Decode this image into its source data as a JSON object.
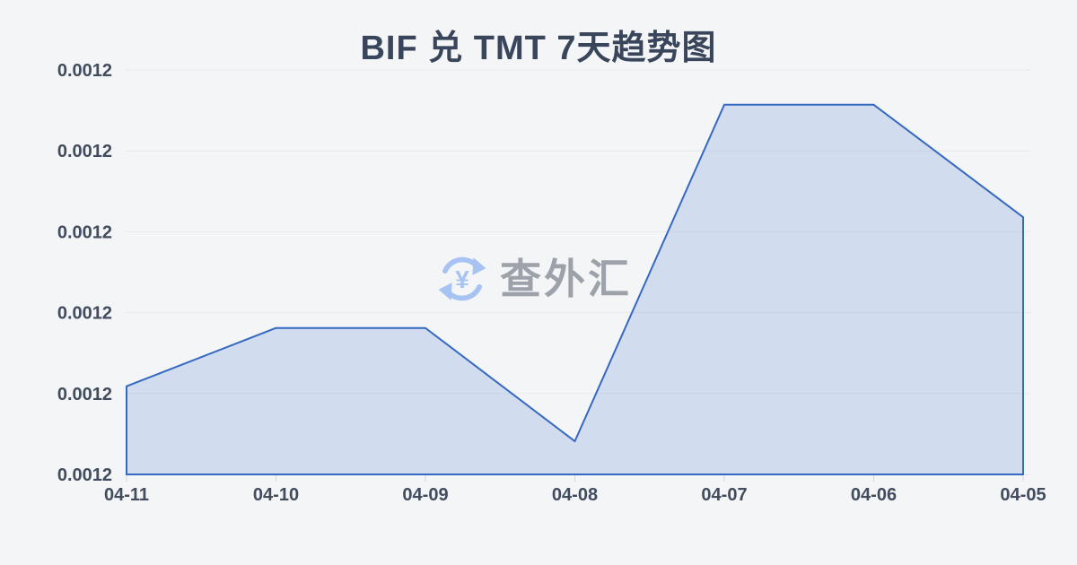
{
  "page": {
    "background": "#f4f5f7"
  },
  "watermark": {
    "text": "查外汇",
    "icon": "currency-exchange-icon",
    "text_color": "#9da1a9",
    "icon_color": "#a7c3f1",
    "icon_symbol": "¥"
  },
  "chart_data": {
    "type": "area",
    "title": "BIF 兑 TMT 7天趋势图",
    "categories": [
      "04-11",
      "04-10",
      "04-09",
      "04-08",
      "04-07",
      "04-06",
      "04-05"
    ],
    "values": [
      0.0012059,
      0.0012131,
      0.0012131,
      0.0011991,
      0.0012407,
      0.0012407,
      0.0012268
    ],
    "y_tick_labels": [
      "0.0012",
      "0.0012",
      "0.0012",
      "0.0012",
      "0.0012",
      "0.0012"
    ],
    "ylim": [
      0.001195,
      0.001245
    ],
    "xlabel": "",
    "ylabel": "",
    "grid": true,
    "legend_position": "none",
    "colors": {
      "line": "#3568c0",
      "fill": "rgba(93,130,212,0.22)",
      "grid": "#e7e9ed",
      "tick": "#d3d6db",
      "title": "#39455a",
      "axis_label": "#414c5e"
    }
  }
}
